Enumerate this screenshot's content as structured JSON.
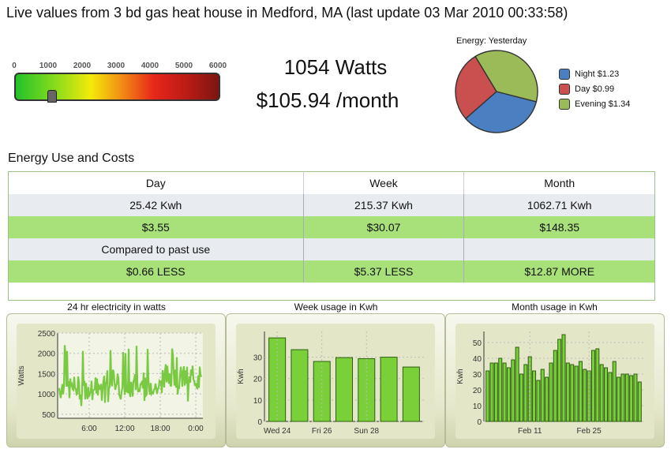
{
  "header": {
    "title": "Live values from 3 bd gas heat house in Medford, MA (last update 03 Mar 2010 00:33:58)"
  },
  "gauge": {
    "ticks": [
      "0",
      "1000",
      "2000",
      "3000",
      "4000",
      "5000",
      "6000"
    ],
    "max": 6000,
    "value": 1054
  },
  "live": {
    "watts": "1054 Watts",
    "monthly": "$105.94 /month"
  },
  "pie": {
    "title": "Energy: Yesterday",
    "slices": [
      {
        "label": "Night $1.23",
        "value": 1.23,
        "color": "#4a7fc1"
      },
      {
        "label": "Day $0.99",
        "value": 0.99,
        "color": "#c9504f"
      },
      {
        "label": "Evening $1.34",
        "value": 1.34,
        "color": "#9bbb59"
      }
    ]
  },
  "table": {
    "title": "Energy Use and Costs",
    "headers": [
      "Day",
      "Week",
      "Month"
    ],
    "kwh": [
      "25.42 Kwh",
      "215.37 Kwh",
      "1062.71 Kwh"
    ],
    "cost": [
      "$3.55",
      "$30.07",
      "$148.35"
    ],
    "compare_label": "Compared to past use",
    "compare": [
      "$0.66 LESS",
      "$5.37 LESS",
      "$12.87 MORE"
    ]
  },
  "charts": {
    "hr24": {
      "title": "24 hr electricity in watts",
      "ylabel": "Watts",
      "yticks": [
        "2500",
        "2000",
        "1500",
        "1000",
        "500"
      ],
      "xticks": [
        "6:00",
        "12:00",
        "18:00",
        "0:00"
      ],
      "color": "#7ac943"
    },
    "week": {
      "title": "Week usage in Kwh",
      "ylabel": "Kwh",
      "yticks": [
        "30",
        "20",
        "10",
        "0"
      ],
      "xticks": [
        "Wed 24",
        "Fri 26",
        "Sun 28"
      ],
      "values": [
        39,
        33.5,
        28,
        29.8,
        29.3,
        30,
        25.4
      ]
    },
    "month": {
      "title": "Month usage in Kwh",
      "ylabel": "Kwh",
      "yticks": [
        "50",
        "40",
        "30",
        "20",
        "10",
        "0"
      ],
      "xticks": [
        "Feb 11",
        "Feb 25"
      ],
      "values": [
        32,
        37,
        37,
        40,
        37,
        34,
        39,
        47,
        30,
        36,
        41,
        32,
        26,
        33,
        28,
        37,
        45,
        52,
        55,
        37,
        36,
        35,
        38,
        33,
        32,
        45,
        46,
        36,
        34,
        31,
        38,
        28,
        30,
        30,
        29,
        30,
        25
      ]
    }
  },
  "chart_data": [
    {
      "type": "pie",
      "title": "Energy: Yesterday",
      "categories": [
        "Night $1.23",
        "Day $0.99",
        "Evening $1.34"
      ],
      "values": [
        1.23,
        0.99,
        1.34
      ]
    },
    {
      "type": "bar",
      "title": "Week usage in Kwh",
      "ylabel": "Kwh",
      "ylim": [
        0,
        40
      ],
      "categories": [
        "Wed 24",
        "",
        "Fri 26",
        "",
        "Sun 28",
        "",
        ""
      ],
      "values": [
        39,
        33.5,
        28,
        29.8,
        29.3,
        30,
        25.4
      ]
    },
    {
      "type": "bar",
      "title": "Month usage in Kwh",
      "ylabel": "Kwh",
      "ylim": [
        0,
        57
      ],
      "values": [
        32,
        37,
        37,
        40,
        37,
        34,
        39,
        47,
        30,
        36,
        41,
        32,
        26,
        33,
        28,
        37,
        45,
        52,
        55,
        37,
        36,
        35,
        38,
        33,
        32,
        45,
        46,
        36,
        34,
        31,
        38,
        28,
        30,
        30,
        29,
        30,
        25
      ]
    },
    {
      "type": "line",
      "title": "24 hr electricity in watts",
      "ylabel": "Watts",
      "ylim": [
        400,
        2500
      ]
    }
  ]
}
